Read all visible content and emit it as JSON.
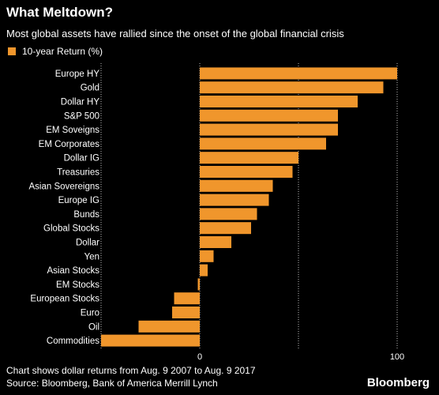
{
  "title": "What Meltdown?",
  "subtitle": "Most global assets have rallied since the onset of the global financial crisis",
  "legend_label": "10-year Return (%)",
  "footnote": "Chart shows dollar returns from Aug. 9 2007 to Aug. 9 2017",
  "source": "Source: Bloomberg, Bank of America Merrill Lynch",
  "brand": "Bloomberg",
  "colors": {
    "bar": "#f0962c",
    "background": "#000000",
    "text": "#ffffff",
    "grid": "#bdbdbd"
  },
  "chart_data": {
    "type": "bar",
    "orientation": "horizontal",
    "categories": [
      "Europe HY",
      "Gold",
      "Dollar HY",
      "S&P 500",
      "EM Soveigns",
      "EM Corporates",
      "Dollar IG",
      "Treasuries",
      "Asian Sovereigns",
      "Europe IG",
      "Bunds",
      "Global Stocks",
      "Dollar",
      "Yen",
      "Asian Stocks",
      "EM Stocks",
      "European Stocks",
      "Euro",
      "Oil",
      "Commodities"
    ],
    "series": [
      {
        "name": "10-year Return (%)",
        "values": [
          100,
          93,
          80,
          70,
          70,
          64,
          50,
          47,
          37,
          35,
          29,
          26,
          16,
          7,
          4,
          -1,
          -13,
          -14,
          -31,
          -50
        ]
      }
    ],
    "xlim": [
      -50,
      100
    ],
    "xticks": [
      0,
      100
    ],
    "grid": "vertical dotted at 0, 50, 100",
    "legend_position": "top-left"
  }
}
